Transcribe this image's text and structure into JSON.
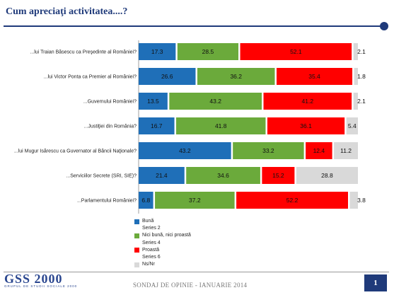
{
  "title": "Cum apreciaţi activitatea....?",
  "footer": {
    "logo_main": "GSS 2000",
    "logo_sub": "GRUPUL DE STUDII SOCIALE 2000",
    "text": "SONDAJ DE OPINIE - IANUARIE 2014",
    "page": "1"
  },
  "colors": {
    "accent": "#1F3A7A"
  },
  "chart_data": {
    "type": "bar",
    "orientation": "horizontal",
    "stacked": true,
    "categories": [
      "...lui Traian Băsescu ca Preşedinte al României?",
      "...lui Victor Ponta ca Premier al României?",
      "...Guvernului României?",
      "...Justiţiei din România?",
      "...lui Mugur Isărescu ca Guvernator al Băncii Naţionale?",
      "...Serviciilor Secrete (SRI, SIE)?",
      "...Parlamentului României?"
    ],
    "series": [
      {
        "name": "Bună",
        "color": "#1F6FB8",
        "values": [
          17.3,
          26.6,
          13.5,
          16.7,
          43.2,
          21.4,
          6.8
        ]
      },
      {
        "name": "Nici bună, nici proastă",
        "color": "#6BAA3B",
        "values": [
          28.5,
          36.2,
          43.2,
          41.8,
          33.2,
          34.6,
          37.2
        ]
      },
      {
        "name": "Proastă",
        "color": "#FF0000",
        "values": [
          52.1,
          35.4,
          41.2,
          36.1,
          12.4,
          15.2,
          52.2
        ]
      },
      {
        "name": "Ns/Nr",
        "color": "#D9D9D9",
        "values": [
          2.1,
          1.8,
          2.1,
          5.4,
          11.2,
          28.8,
          3.8
        ]
      }
    ],
    "legend": {
      "placement": "bottom-left",
      "entries": [
        {
          "label": "Bună",
          "color": "#1F6FB8"
        },
        {
          "label": "Series 2"
        },
        {
          "label": "Nici bună, nici proastă",
          "color": "#6BAA3B"
        },
        {
          "label": "Series 4"
        },
        {
          "label": "Proastă",
          "color": "#FF0000"
        },
        {
          "label": "Series 6"
        },
        {
          "label": "Ns/Nr",
          "color": "#D9D9D9"
        }
      ]
    },
    "xlim": [
      0,
      100
    ],
    "grid": false
  }
}
